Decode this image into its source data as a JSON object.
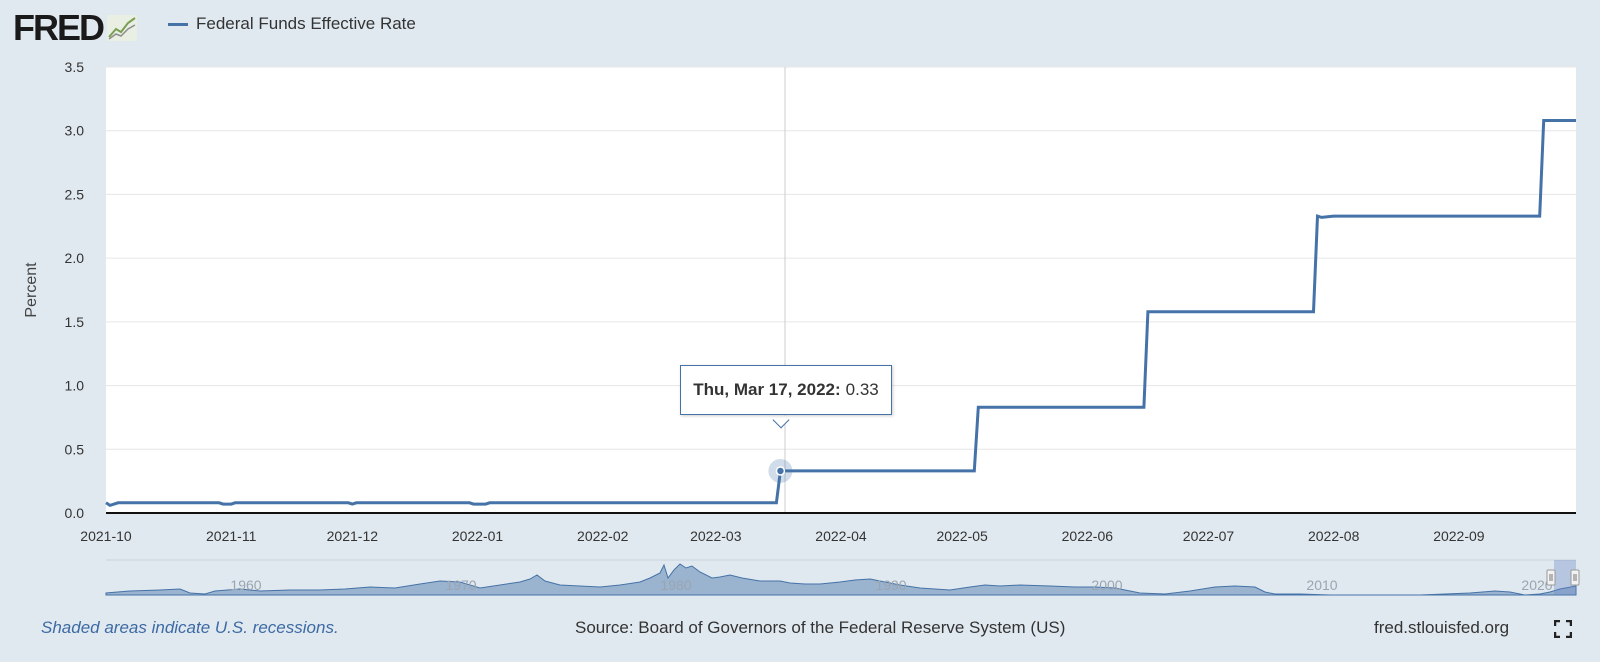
{
  "header": {
    "logo_text": "FRED",
    "logo_icon": "line-chart-icon",
    "legend_label": "Federal Funds Effective Rate"
  },
  "tooltip": {
    "date_label": "Thu, Mar 17, 2022:",
    "value_label": "0.33"
  },
  "navigator": {
    "labels": [
      "1960",
      "1970",
      "1980",
      "1990",
      "2000",
      "2010",
      "2020"
    ]
  },
  "footer": {
    "recession_note": "Shaded areas indicate U.S. recessions.",
    "source": "Source: Board of Governors of the Federal Reserve System (US)",
    "site": "fred.stlouisfed.org",
    "fullscreen_icon": "fullscreen-icon"
  },
  "colors": {
    "series": "#4572a7",
    "background": "#e1e9f0",
    "plot_background": "#ffffff",
    "recession_text": "#3d6aa3"
  },
  "chart_data": {
    "type": "line",
    "title": "",
    "ylabel": "Percent",
    "xlabel": "",
    "ylim": [
      0,
      3.5
    ],
    "xlim": [
      "2021-10-01",
      "2022-09-30"
    ],
    "yticks": [
      "0.0",
      "0.5",
      "1.0",
      "1.5",
      "2.0",
      "2.5",
      "3.0",
      "3.5"
    ],
    "xticks": [
      "2021-10",
      "2021-11",
      "2021-12",
      "2022-01",
      "2022-02",
      "2022-03",
      "2022-04",
      "2022-05",
      "2022-06",
      "2022-07",
      "2022-08",
      "2022-09"
    ],
    "grid": true,
    "legend": "top-left",
    "highlight": {
      "date": "2022-03-17",
      "value": 0.33
    },
    "series": [
      {
        "name": "Federal Funds Effective Rate",
        "points": [
          [
            "2021-10-01",
            0.08
          ],
          [
            "2021-10-02",
            0.06
          ],
          [
            "2021-10-04",
            0.08
          ],
          [
            "2021-10-29",
            0.08
          ],
          [
            "2021-10-30",
            0.07
          ],
          [
            "2021-11-01",
            0.07
          ],
          [
            "2021-11-02",
            0.08
          ],
          [
            "2021-11-30",
            0.08
          ],
          [
            "2021-12-01",
            0.07
          ],
          [
            "2021-12-02",
            0.08
          ],
          [
            "2021-12-30",
            0.08
          ],
          [
            "2021-12-31",
            0.07
          ],
          [
            "2022-01-03",
            0.07
          ],
          [
            "2022-01-04",
            0.08
          ],
          [
            "2022-03-16",
            0.08
          ],
          [
            "2022-03-17",
            0.33
          ],
          [
            "2022-05-04",
            0.33
          ],
          [
            "2022-05-05",
            0.83
          ],
          [
            "2022-06-15",
            0.83
          ],
          [
            "2022-06-16",
            1.58
          ],
          [
            "2022-07-27",
            1.58
          ],
          [
            "2022-07-28",
            2.33
          ],
          [
            "2022-07-29",
            2.32
          ],
          [
            "2022-08-01",
            2.33
          ],
          [
            "2022-09-21",
            2.33
          ],
          [
            "2022-09-22",
            3.08
          ],
          [
            "2022-09-30",
            3.08
          ]
        ]
      }
    ]
  }
}
